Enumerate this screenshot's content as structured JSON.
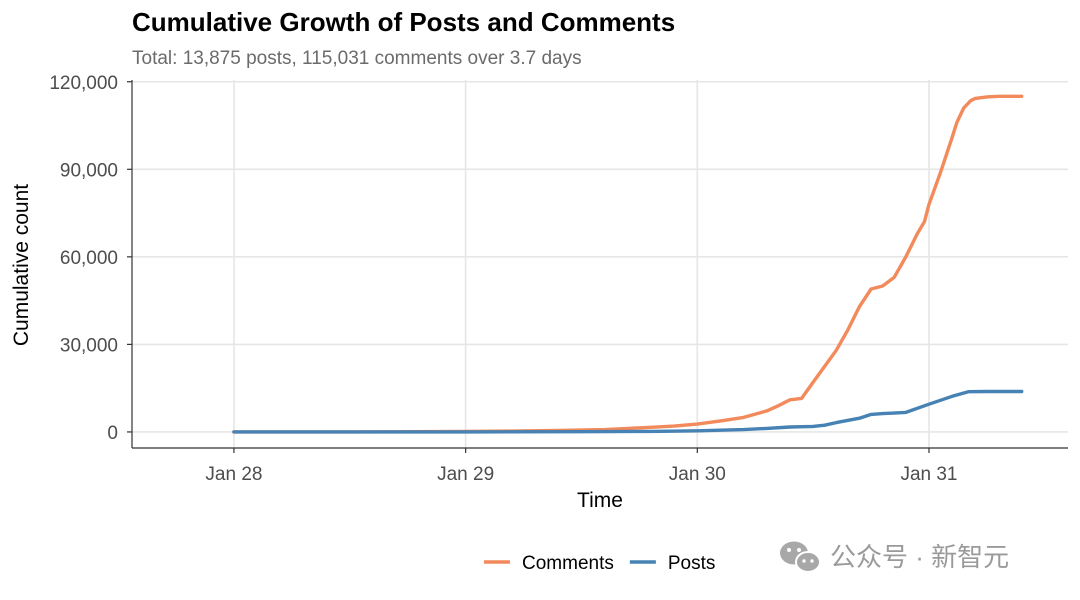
{
  "chart_data": {
    "type": "line",
    "title": "Cumulative Growth of Posts and Comments",
    "subtitle": "Total: 13,875 posts, 115,031 comments over 3.7 days",
    "xlabel": "Time",
    "ylabel": "Cumulative count",
    "x_ticks": [
      "Jan 28",
      "Jan 29",
      "Jan 30",
      "Jan 31"
    ],
    "x_tick_values": [
      0,
      1,
      2,
      3
    ],
    "xlim": [
      -0.44,
      3.6
    ],
    "y_ticks": [
      0,
      30000,
      60000,
      90000,
      120000
    ],
    "y_tick_labels": [
      "0",
      "30,000",
      "60,000",
      "90,000",
      "120,000"
    ],
    "ylim": [
      -5500,
      120600
    ],
    "grid": true,
    "legend_position": "bottom",
    "x_unit": "days from Jan 28",
    "series": [
      {
        "name": "Comments",
        "color": "#f28a5b",
        "x": [
          0,
          0.5,
          1.0,
          1.2,
          1.4,
          1.6,
          1.7,
          1.8,
          1.9,
          2.0,
          2.1,
          2.2,
          2.3,
          2.35,
          2.4,
          2.45,
          2.5,
          2.6,
          2.65,
          2.7,
          2.75,
          2.8,
          2.85,
          2.9,
          2.95,
          2.98,
          3.0,
          3.05,
          3.1,
          3.12,
          3.15,
          3.18,
          3.2,
          3.25,
          3.3,
          3.35,
          3.4
        ],
        "y": [
          0,
          0,
          150,
          300,
          500,
          800,
          1200,
          1600,
          2000,
          2700,
          3800,
          5000,
          7200,
          9000,
          11000,
          11500,
          17000,
          28000,
          35000,
          43000,
          49000,
          50000,
          53000,
          60000,
          68000,
          72000,
          78000,
          89000,
          101000,
          106000,
          111000,
          113500,
          114300,
          114800,
          115000,
          115031,
          115031
        ]
      },
      {
        "name": "Posts",
        "color": "#4682b4",
        "x": [
          0,
          0.5,
          1.0,
          1.5,
          1.8,
          2.0,
          2.2,
          2.3,
          2.4,
          2.5,
          2.55,
          2.6,
          2.7,
          2.75,
          2.8,
          2.9,
          3.0,
          3.1,
          3.17,
          3.25,
          3.4
        ],
        "y": [
          0,
          0,
          0,
          100,
          200,
          400,
          800,
          1200,
          1700,
          1900,
          2300,
          3200,
          4700,
          6000,
          6300,
          6700,
          9500,
          12200,
          13800,
          13875,
          13875
        ]
      }
    ]
  },
  "watermark": {
    "icon": "wechat-icon",
    "text": "公众号 · 新智元"
  }
}
